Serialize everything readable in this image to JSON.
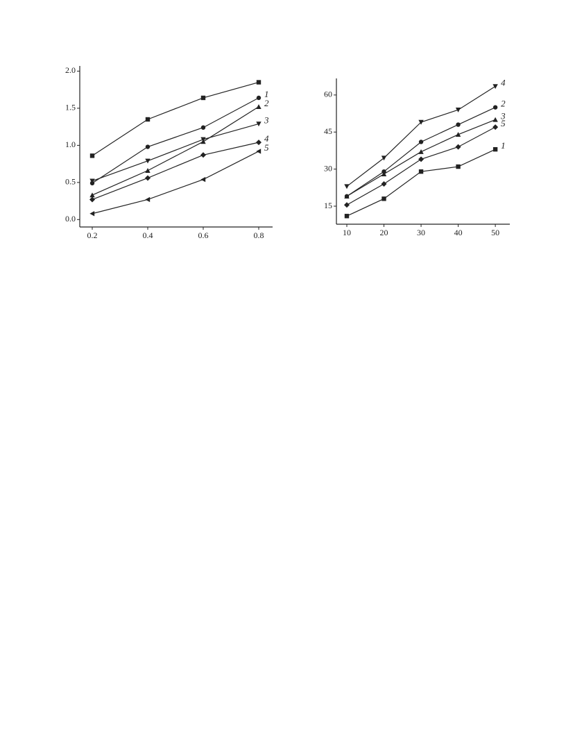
{
  "chart_data": [
    {
      "type": "line",
      "x": [
        0.2,
        0.4,
        0.6,
        0.8
      ],
      "xlim": [
        0.155,
        0.85
      ],
      "xticks": [
        0.2,
        0.4,
        0.6,
        0.8
      ],
      "ylim": [
        -0.1,
        2.07
      ],
      "yticks": [
        {
          "value": 0,
          "label": "0.0"
        },
        0.5,
        {
          "value": 1,
          "label": "1.0"
        },
        1.5,
        {
          "value": 2,
          "label": "2.0"
        }
      ],
      "color": "#222222",
      "series": [
        {
          "marker": "square",
          "values": [
            0.86,
            1.35,
            1.64,
            1.85
          ]
        },
        {
          "name": "1",
          "marker": "circle",
          "values": [
            0.49,
            0.98,
            1.24,
            1.64
          ]
        },
        {
          "name": "2",
          "marker": "triangle-up",
          "values": [
            0.33,
            0.66,
            1.05,
            1.52
          ]
        },
        {
          "name": "3",
          "marker": "triangle-down",
          "values": [
            0.52,
            0.79,
            1.08,
            1.29
          ]
        },
        {
          "name": "4",
          "marker": "diamond",
          "values": [
            0.27,
            0.56,
            0.87,
            1.04
          ]
        },
        {
          "name": "5",
          "marker": "triangle-left",
          "values": [
            0.08,
            0.27,
            0.54,
            0.92
          ]
        }
      ]
    },
    {
      "type": "line",
      "x": [
        10,
        20,
        30,
        40,
        50
      ],
      "xlim": [
        7.2,
        53.9
      ],
      "xticks": [
        10,
        20,
        30,
        40,
        50
      ],
      "ylim": [
        7.7,
        66.7
      ],
      "yticks": [
        15,
        30,
        45,
        60
      ],
      "color": "#222222",
      "series": [
        {
          "name": "4",
          "marker": "triangle-down",
          "values": [
            23,
            34.5,
            49,
            54,
            63.5
          ]
        },
        {
          "name": "2",
          "marker": "circle",
          "values": [
            19,
            29,
            41,
            48,
            55
          ]
        },
        {
          "name": "3",
          "marker": "triangle-up",
          "values": [
            19,
            28,
            37,
            44,
            50
          ]
        },
        {
          "name": "5",
          "marker": "diamond",
          "values": [
            15.5,
            24,
            34,
            39,
            47
          ]
        },
        {
          "name": "1",
          "marker": "square",
          "values": [
            11,
            18,
            29,
            31,
            38
          ]
        }
      ]
    }
  ]
}
